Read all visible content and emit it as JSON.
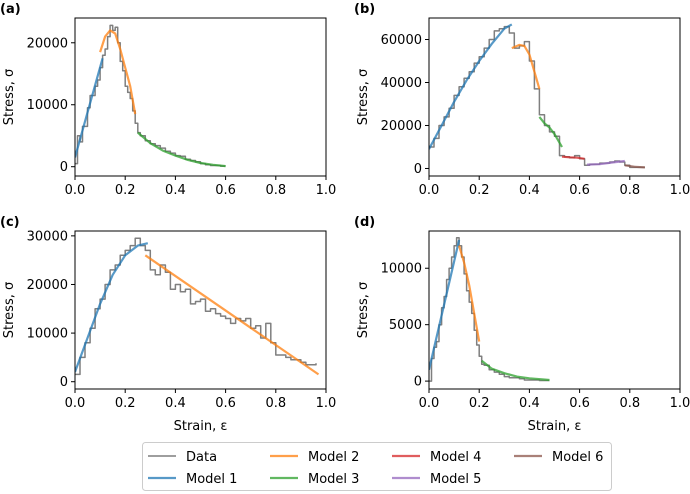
{
  "colors": {
    "data": "#7f7f7f",
    "model_1": "#1f77b4",
    "model_2": "#ff7f0e",
    "model_3": "#2ca02c",
    "model_4": "#d62728",
    "model_5": "#9467bd",
    "model_6": "#8c564b"
  },
  "chart_data": [
    {
      "type": "line",
      "panel_label": "(a)",
      "xlabel": "",
      "ylabel": "Stress, σ",
      "xlim": [
        0,
        1.0
      ],
      "ylim": [
        -1500,
        24000
      ],
      "xticks": [
        0.0,
        0.2,
        0.4,
        0.6,
        0.8,
        1.0
      ],
      "xtick_labels": [
        "0.0",
        "0.2",
        "0.4",
        "0.6",
        "0.8",
        "1.0"
      ],
      "yticks": [
        0,
        10000,
        20000
      ],
      "ytick_labels": [
        "0",
        "10000",
        "20000"
      ],
      "series": [
        {
          "name": "Data",
          "color_key": "data",
          "x": [
            0.0,
            0.01,
            0.02,
            0.03,
            0.05,
            0.06,
            0.08,
            0.09,
            0.1,
            0.11,
            0.12,
            0.13,
            0.14,
            0.15,
            0.16,
            0.17,
            0.18,
            0.19,
            0.2,
            0.21,
            0.22,
            0.23,
            0.24,
            0.25,
            0.26,
            0.28,
            0.3,
            0.32,
            0.34,
            0.36,
            0.38,
            0.4,
            0.42,
            0.44,
            0.46,
            0.48,
            0.5,
            0.52,
            0.54,
            0.56,
            0.58,
            0.6
          ],
          "y": [
            500,
            5000,
            4000,
            6500,
            9500,
            11500,
            13000,
            14000,
            16000,
            18000,
            19000,
            21000,
            22800,
            22000,
            22500,
            20000,
            17000,
            15500,
            13000,
            12000,
            11000,
            9000,
            7000,
            5500,
            5000,
            4200,
            3700,
            3400,
            3000,
            2500,
            2200,
            1800,
            1700,
            1200,
            1000,
            800,
            500,
            300,
            200,
            200,
            100,
            100
          ]
        },
        {
          "name": "Model 1",
          "color_key": "model_1",
          "x": [
            0.0,
            0.11
          ],
          "y": [
            1500,
            17500
          ]
        },
        {
          "name": "Model 2",
          "color_key": "model_2",
          "x": [
            0.1,
            0.12,
            0.14,
            0.16,
            0.18,
            0.2,
            0.22,
            0.24
          ],
          "y": [
            18500,
            21000,
            22000,
            21500,
            19000,
            16000,
            13000,
            8500
          ]
        },
        {
          "name": "Model 3",
          "color_key": "model_3",
          "x": [
            0.25,
            0.3,
            0.35,
            0.4,
            0.45,
            0.5,
            0.55,
            0.6
          ],
          "y": [
            5500,
            3800,
            2600,
            1800,
            1100,
            600,
            300,
            100
          ]
        }
      ]
    },
    {
      "type": "line",
      "panel_label": "(b)",
      "xlabel": "",
      "ylabel": "Stress, σ",
      "xlim": [
        0,
        1.0
      ],
      "ylim": [
        -3500,
        70000
      ],
      "xticks": [
        0.0,
        0.2,
        0.4,
        0.6,
        0.8,
        1.0
      ],
      "xtick_labels": [
        "0.0",
        "0.2",
        "0.4",
        "0.6",
        "0.8",
        "1.0"
      ],
      "yticks": [
        0,
        20000,
        40000,
        60000
      ],
      "ytick_labels": [
        "0",
        "20000",
        "40000",
        "60000"
      ],
      "series": [
        {
          "name": "Data",
          "color_key": "data",
          "x": [
            0.0,
            0.02,
            0.04,
            0.06,
            0.08,
            0.1,
            0.12,
            0.14,
            0.16,
            0.18,
            0.2,
            0.22,
            0.24,
            0.26,
            0.28,
            0.3,
            0.32,
            0.34,
            0.36,
            0.38,
            0.4,
            0.42,
            0.44,
            0.46,
            0.48,
            0.5,
            0.52,
            0.54,
            0.56,
            0.58,
            0.6,
            0.62,
            0.64,
            0.66,
            0.68,
            0.7,
            0.72,
            0.74,
            0.76,
            0.78,
            0.8,
            0.82,
            0.84,
            0.86
          ],
          "y": [
            10000,
            14000,
            20000,
            24000,
            28000,
            34000,
            38000,
            42000,
            45000,
            49000,
            52000,
            56000,
            60000,
            64000,
            65000,
            66000,
            63000,
            56000,
            57000,
            59000,
            50000,
            37000,
            25000,
            20000,
            17000,
            15000,
            6000,
            5500,
            5000,
            6000,
            4500,
            1500,
            2000,
            2000,
            2500,
            2500,
            3000,
            3500,
            3000,
            1500,
            500,
            500,
            500,
            500
          ]
        },
        {
          "name": "Model 1",
          "color_key": "model_1",
          "x": [
            0.0,
            0.05,
            0.1,
            0.15,
            0.2,
            0.25,
            0.3,
            0.33
          ],
          "y": [
            9000,
            20000,
            31000,
            41000,
            50000,
            58000,
            65000,
            67000
          ]
        },
        {
          "name": "Model 2",
          "color_key": "model_2",
          "x": [
            0.33,
            0.36,
            0.38,
            0.4,
            0.42,
            0.44
          ],
          "y": [
            56000,
            57500,
            57000,
            53000,
            45000,
            37000
          ]
        },
        {
          "name": "Model 3",
          "color_key": "model_3",
          "x": [
            0.44,
            0.46,
            0.48,
            0.5,
            0.53
          ],
          "y": [
            24000,
            21000,
            19000,
            16000,
            10000
          ]
        },
        {
          "name": "Model 4",
          "color_key": "model_4",
          "x": [
            0.53,
            0.56,
            0.59,
            0.62
          ],
          "y": [
            5500,
            5200,
            5000,
            4500
          ]
        },
        {
          "name": "Model 5",
          "color_key": "model_5",
          "x": [
            0.63,
            0.68,
            0.73,
            0.78
          ],
          "y": [
            1800,
            2000,
            2800,
            3500
          ]
        },
        {
          "name": "Model 6",
          "color_key": "model_6",
          "x": [
            0.78,
            0.82,
            0.86
          ],
          "y": [
            1500,
            800,
            500
          ]
        }
      ]
    },
    {
      "type": "line",
      "panel_label": "(c)",
      "xlabel": "Strain, ε",
      "ylabel": "Stress, σ",
      "xlim": [
        0,
        1.0
      ],
      "ylim": [
        -1500,
        31000
      ],
      "xticks": [
        0.0,
        0.2,
        0.4,
        0.6,
        0.8,
        1.0
      ],
      "xtick_labels": [
        "0.0",
        "0.2",
        "0.4",
        "0.6",
        "0.8",
        "1.0"
      ],
      "yticks": [
        0,
        10000,
        20000,
        30000
      ],
      "ytick_labels": [
        "0",
        "10000",
        "20000",
        "30000"
      ],
      "series": [
        {
          "name": "Data",
          "color_key": "data",
          "x": [
            0.0,
            0.02,
            0.04,
            0.06,
            0.08,
            0.1,
            0.12,
            0.14,
            0.16,
            0.18,
            0.2,
            0.22,
            0.24,
            0.26,
            0.28,
            0.3,
            0.32,
            0.34,
            0.36,
            0.38,
            0.4,
            0.42,
            0.44,
            0.46,
            0.48,
            0.5,
            0.52,
            0.54,
            0.56,
            0.58,
            0.6,
            0.62,
            0.64,
            0.66,
            0.68,
            0.7,
            0.72,
            0.74,
            0.76,
            0.78,
            0.8,
            0.82,
            0.84,
            0.86,
            0.88,
            0.9,
            0.92,
            0.94,
            0.96
          ],
          "y": [
            1500,
            5000,
            8000,
            11000,
            15000,
            17000,
            20000,
            23000,
            24000,
            26000,
            27000,
            28000,
            29500,
            28000,
            27000,
            23000,
            22000,
            24000,
            22500,
            19000,
            20000,
            18500,
            19000,
            16000,
            16500,
            17000,
            14500,
            15000,
            14000,
            13500,
            13000,
            12000,
            13000,
            12500,
            13000,
            11000,
            11500,
            9000,
            12000,
            8000,
            5500,
            5500,
            5000,
            4500,
            4500,
            4000,
            3500,
            3500,
            3800
          ]
        },
        {
          "name": "Model 1",
          "color_key": "model_1",
          "x": [
            0.0,
            0.05,
            0.1,
            0.15,
            0.2,
            0.25,
            0.29
          ],
          "y": [
            2000,
            9000,
            16000,
            22000,
            26000,
            28000,
            28500
          ]
        },
        {
          "name": "Model 2",
          "color_key": "model_2",
          "x": [
            0.28,
            0.97
          ],
          "y": [
            26000,
            1500
          ]
        }
      ]
    },
    {
      "type": "line",
      "panel_label": "(d)",
      "xlabel": "Strain, ε",
      "ylabel": "Stress, σ",
      "xlim": [
        0,
        1.0
      ],
      "ylim": [
        -700,
        13300
      ],
      "xticks": [
        0.0,
        0.2,
        0.4,
        0.6,
        0.8,
        1.0
      ],
      "xtick_labels": [
        "0.0",
        "0.2",
        "0.4",
        "0.6",
        "0.8",
        "1.0"
      ],
      "yticks": [
        0,
        5000,
        10000
      ],
      "ytick_labels": [
        "0",
        "5000",
        "10000"
      ],
      "series": [
        {
          "name": "Data",
          "color_key": "data",
          "x": [
            0.0,
            0.01,
            0.02,
            0.03,
            0.04,
            0.05,
            0.06,
            0.07,
            0.08,
            0.09,
            0.1,
            0.11,
            0.12,
            0.13,
            0.14,
            0.15,
            0.16,
            0.17,
            0.18,
            0.19,
            0.2,
            0.21,
            0.22,
            0.24,
            0.26,
            0.28,
            0.3,
            0.32,
            0.34,
            0.36,
            0.38,
            0.4,
            0.42,
            0.44,
            0.46,
            0.48
          ],
          "y": [
            0,
            2000,
            3000,
            3500,
            5000,
            6500,
            7500,
            9000,
            10000,
            11000,
            12000,
            12700,
            12000,
            11000,
            9500,
            8000,
            7000,
            6000,
            4500,
            3200,
            2200,
            1500,
            1400,
            1000,
            800,
            600,
            400,
            300,
            300,
            200,
            100,
            100,
            100,
            50,
            50,
            50
          ]
        },
        {
          "name": "Model 1",
          "color_key": "model_1",
          "x": [
            0.0,
            0.12
          ],
          "y": [
            1000,
            12500
          ]
        },
        {
          "name": "Model 2",
          "color_key": "model_2",
          "x": [
            0.12,
            0.14,
            0.16,
            0.18,
            0.2
          ],
          "y": [
            12000,
            10500,
            8500,
            6000,
            3500
          ]
        },
        {
          "name": "Model 3",
          "color_key": "model_3",
          "x": [
            0.21,
            0.25,
            0.3,
            0.35,
            0.4,
            0.45,
            0.48
          ],
          "y": [
            1800,
            1100,
            700,
            400,
            250,
            150,
            100
          ]
        }
      ]
    }
  ],
  "legend": {
    "location": "bottom-center",
    "entries": [
      {
        "label": "Data",
        "color_key": "data"
      },
      {
        "label": "Model 1",
        "color_key": "model_1"
      },
      {
        "label": "Model 2",
        "color_key": "model_2"
      },
      {
        "label": "Model 3",
        "color_key": "model_3"
      },
      {
        "label": "Model 4",
        "color_key": "model_4"
      },
      {
        "label": "Model 5",
        "color_key": "model_5"
      },
      {
        "label": "Model 6",
        "color_key": "model_6"
      }
    ]
  }
}
